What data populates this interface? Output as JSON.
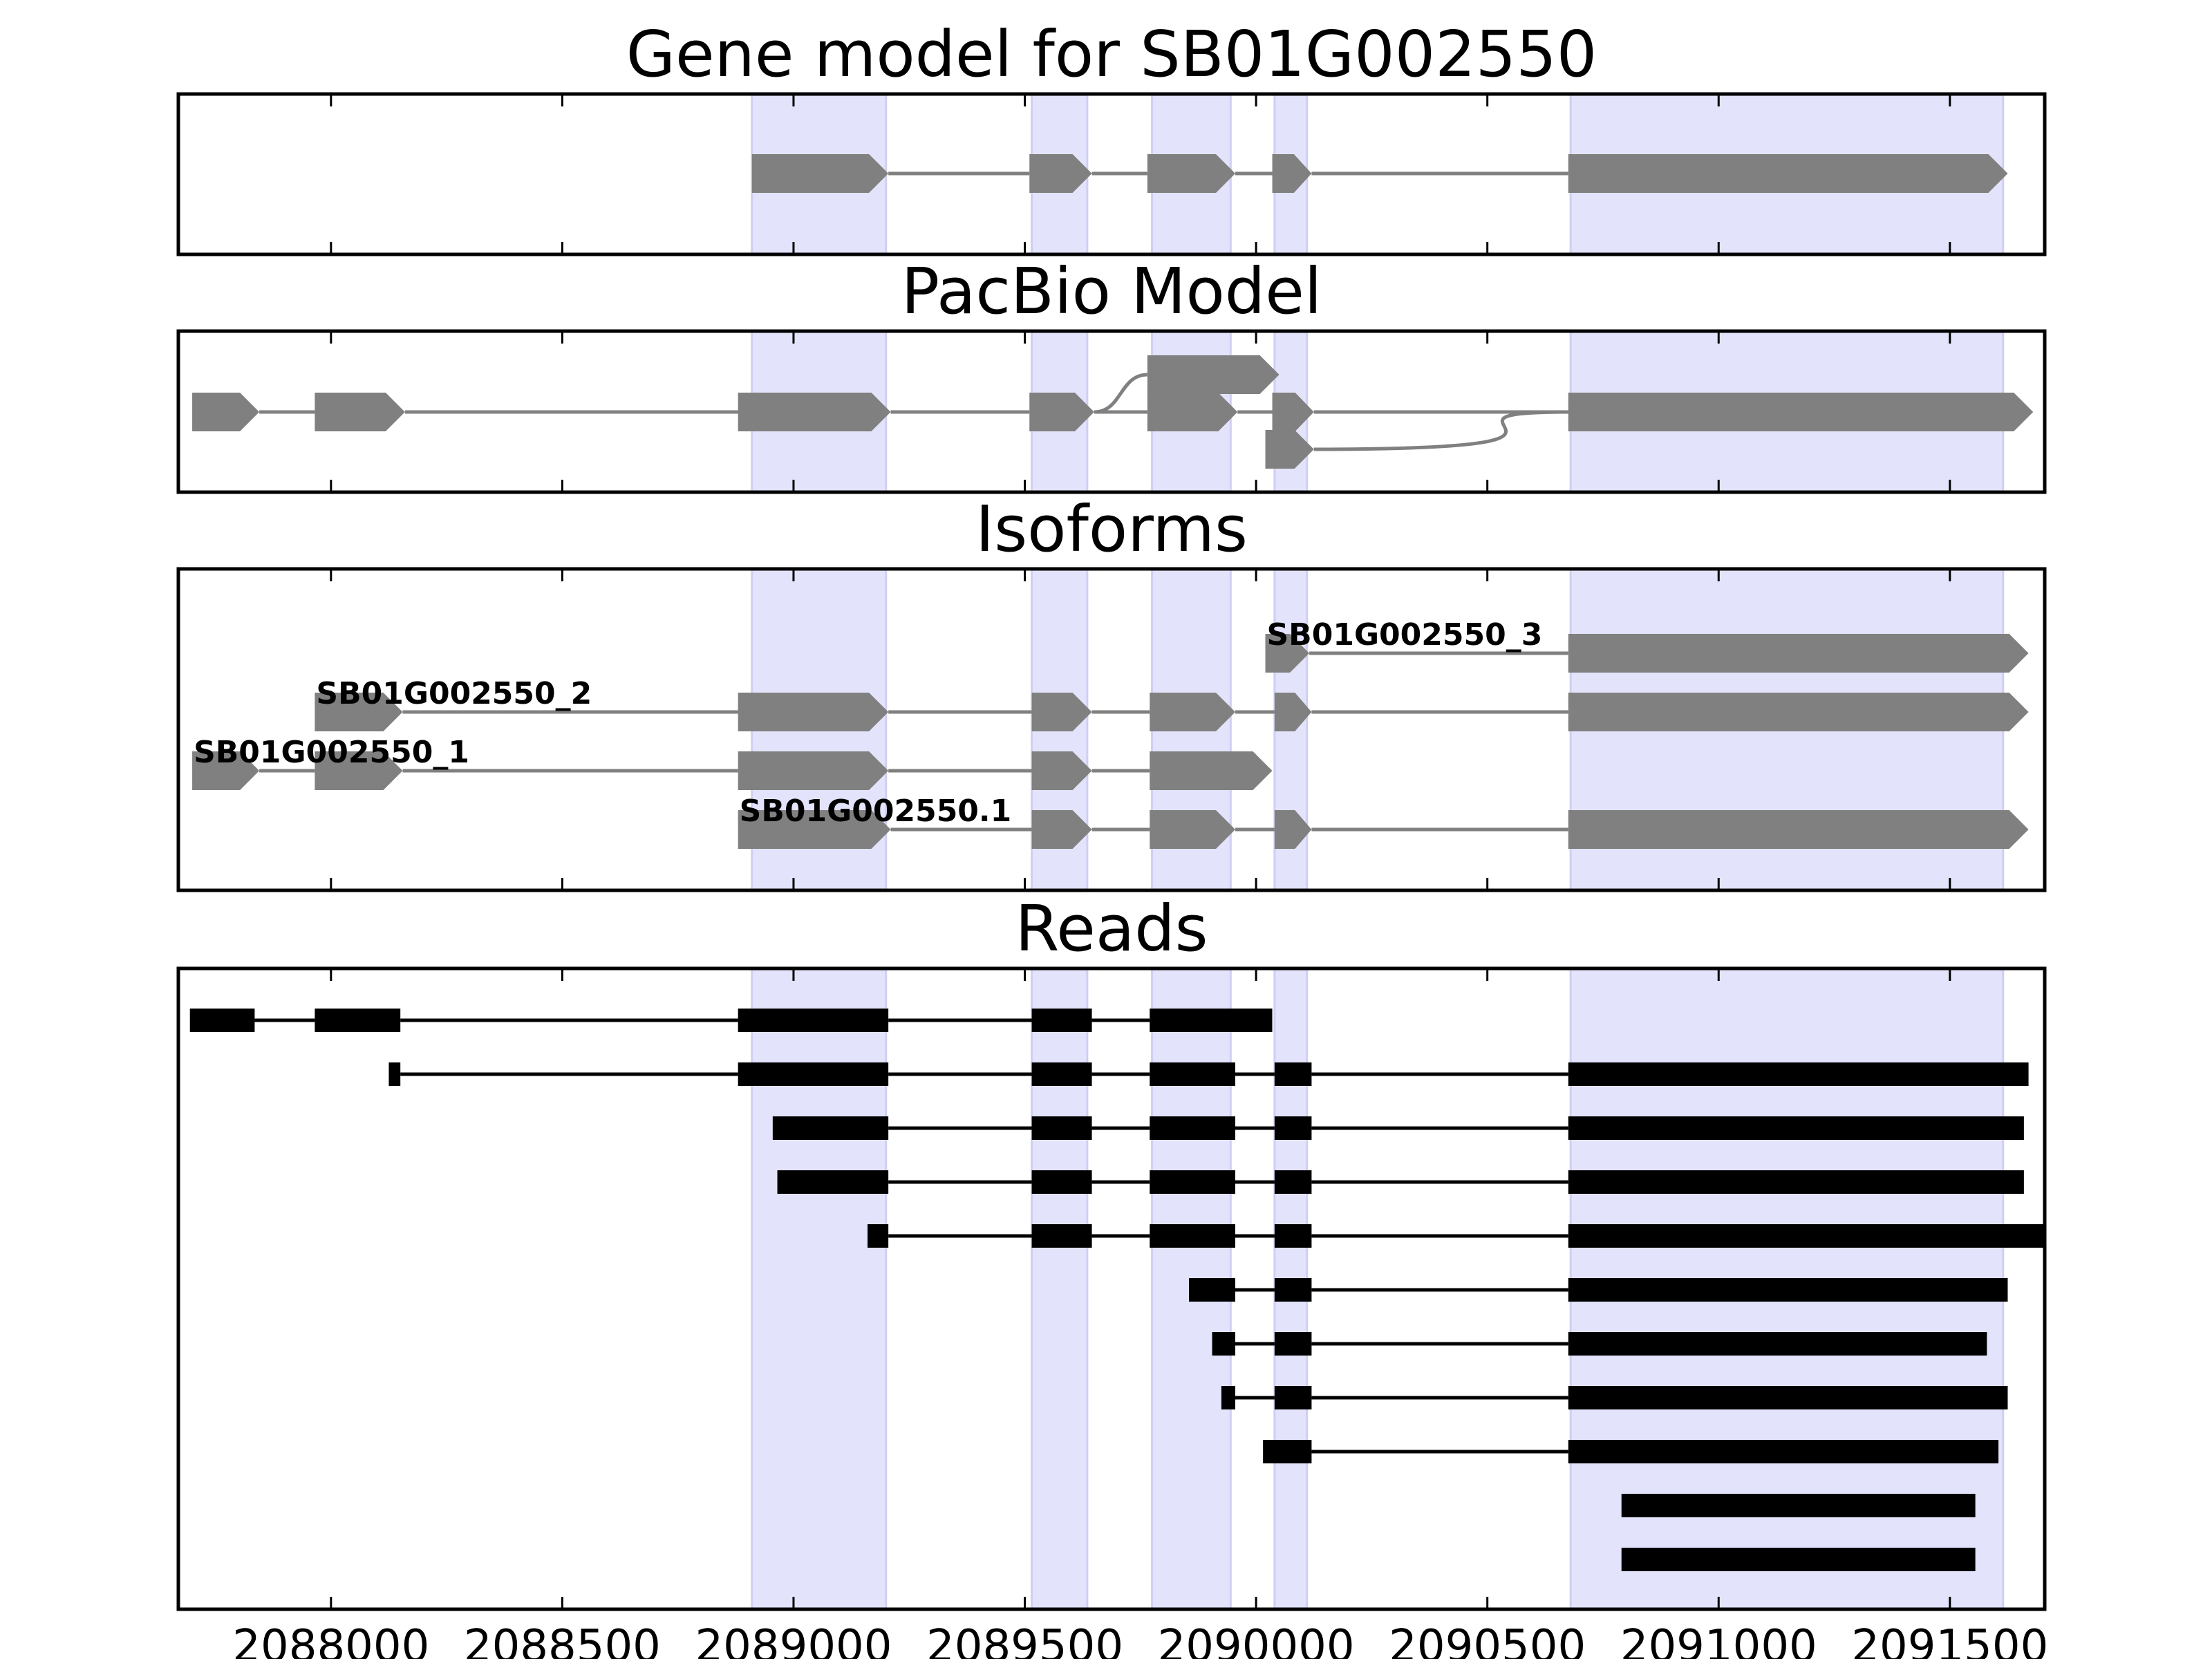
{
  "chart_data": {
    "type": "gene-structure",
    "xlim": [
      2087670,
      2091705
    ],
    "xticks": [
      2088000,
      2088500,
      2089000,
      2089500,
      2090000,
      2090500,
      2091000,
      2091500
    ],
    "xtick_labels": [
      "2088000",
      "2088500",
      "2089000",
      "2089500",
      "2090000",
      "2090500",
      "2091000",
      "2091500"
    ],
    "colors": {
      "feature": "#808080",
      "read": "#000000",
      "highlight": "#e3e3fb",
      "highlight_edge": "#cfcff3",
      "frame": "#000000"
    },
    "highlight_regions": [
      [
        2088910,
        2089200
      ],
      [
        2089515,
        2089635
      ],
      [
        2089775,
        2089945
      ],
      [
        2090040,
        2090110
      ],
      [
        2090680,
        2091615
      ]
    ],
    "panels": [
      {
        "title": "Gene model for SB01G002550",
        "kind": "model",
        "rows": 1,
        "features": [
          {
            "row": 0,
            "exons": [
              [
                2088910,
                2089205
              ],
              [
                2089510,
                2089645
              ],
              [
                2089765,
                2089955
              ],
              [
                2090035,
                2090120
              ],
              [
                2090675,
                2091625
              ]
            ]
          }
        ]
      },
      {
        "title": "PacBio Model",
        "kind": "graph",
        "rows": 3,
        "features": [
          {
            "row": 1,
            "exons": [
              [
                2087700,
                2087845
              ],
              [
                2087965,
                2088160
              ],
              [
                2088880,
                2089210
              ],
              [
                2089510,
                2089650
              ],
              [
                2089765,
                2089960
              ],
              [
                2090035,
                2090125
              ],
              [
                2090675,
                2091680
              ]
            ]
          },
          {
            "row": 0,
            "exons": [
              [
                2089765,
                2090050
              ]
            ],
            "branch_from": 2089650
          },
          {
            "row": 2,
            "exons": [
              [
                2090020,
                2090125
              ]
            ],
            "merge_to": 2090675
          }
        ]
      },
      {
        "title": "Isoforms",
        "kind": "model",
        "rows": 4,
        "features": [
          {
            "row": 0,
            "label": "SB01G002550_3",
            "exons": [
              [
                2090020,
                2090115
              ],
              [
                2090675,
                2091670
              ]
            ]
          },
          {
            "row": 1,
            "label": "SB01G002550_2",
            "exons": [
              [
                2087965,
                2088155
              ],
              [
                2088880,
                2089205
              ],
              [
                2089515,
                2089645
              ],
              [
                2089770,
                2089955
              ],
              [
                2090040,
                2090120
              ],
              [
                2090675,
                2091670
              ]
            ]
          },
          {
            "row": 2,
            "label": "SB01G002550_1",
            "exons": [
              [
                2087700,
                2087845
              ],
              [
                2087965,
                2088155
              ],
              [
                2088880,
                2089205
              ],
              [
                2089515,
                2089645
              ],
              [
                2089770,
                2090035
              ]
            ]
          },
          {
            "row": 3,
            "label": "SB01G002550.1",
            "exons": [
              [
                2088880,
                2089210
              ],
              [
                2089515,
                2089645
              ],
              [
                2089770,
                2089955
              ],
              [
                2090040,
                2090120
              ],
              [
                2090675,
                2091670
              ]
            ]
          }
        ]
      },
      {
        "title": "Reads",
        "kind": "reads",
        "rows": 11,
        "features": [
          {
            "row": 0,
            "exons": [
              [
                2087695,
                2087835
              ],
              [
                2087965,
                2088150
              ],
              [
                2088880,
                2089205
              ],
              [
                2089515,
                2089645
              ],
              [
                2089770,
                2090035
              ]
            ]
          },
          {
            "row": 1,
            "exons": [
              [
                2088125,
                2088150
              ],
              [
                2088880,
                2089205
              ],
              [
                2089515,
                2089645
              ],
              [
                2089770,
                2089955
              ],
              [
                2090040,
                2090120
              ],
              [
                2090675,
                2091670
              ]
            ]
          },
          {
            "row": 2,
            "exons": [
              [
                2088955,
                2089205
              ],
              [
                2089515,
                2089645
              ],
              [
                2089770,
                2089955
              ],
              [
                2090040,
                2090120
              ],
              [
                2090675,
                2091660
              ]
            ]
          },
          {
            "row": 3,
            "exons": [
              [
                2088965,
                2089205
              ],
              [
                2089515,
                2089645
              ],
              [
                2089770,
                2089955
              ],
              [
                2090040,
                2090120
              ],
              [
                2090675,
                2091660
              ]
            ]
          },
          {
            "row": 4,
            "exons": [
              [
                2089160,
                2089205
              ],
              [
                2089515,
                2089645
              ],
              [
                2089770,
                2089955
              ],
              [
                2090040,
                2090120
              ],
              [
                2090675,
                2091705
              ]
            ]
          },
          {
            "row": 5,
            "exons": [
              [
                2089855,
                2089955
              ],
              [
                2090040,
                2090120
              ],
              [
                2090675,
                2091625
              ]
            ]
          },
          {
            "row": 6,
            "exons": [
              [
                2089905,
                2089955
              ],
              [
                2090040,
                2090120
              ],
              [
                2090675,
                2091580
              ]
            ]
          },
          {
            "row": 7,
            "exons": [
              [
                2089925,
                2089955
              ],
              [
                2090040,
                2090120
              ],
              [
                2090675,
                2091625
              ]
            ]
          },
          {
            "row": 8,
            "exons": [
              [
                2090015,
                2090120
              ],
              [
                2090675,
                2091605
              ]
            ]
          },
          {
            "row": 9,
            "exons": [
              [
                2090790,
                2091555
              ]
            ]
          },
          {
            "row": 10,
            "exons": [
              [
                2090790,
                2091555
              ]
            ]
          }
        ]
      }
    ]
  }
}
